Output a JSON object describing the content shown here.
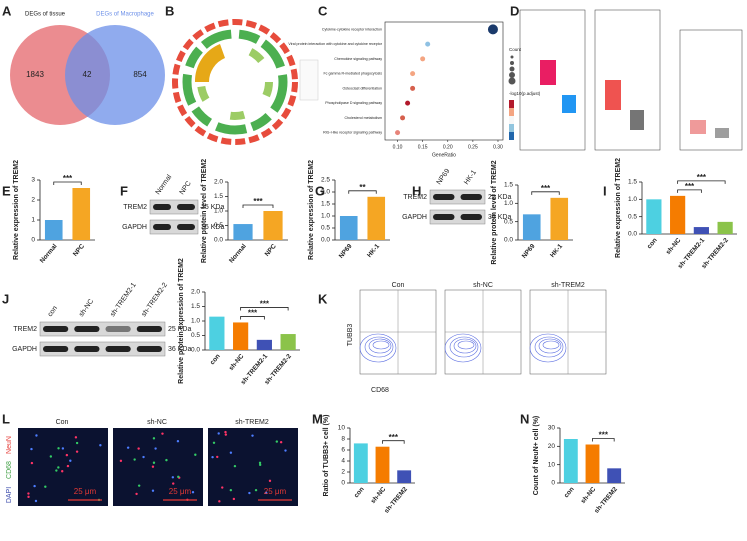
{
  "panels": [
    "A",
    "B",
    "C",
    "D",
    "E",
    "F",
    "G",
    "H",
    "I",
    "J",
    "K",
    "L",
    "M",
    "N"
  ],
  "venn": {
    "left_label": "DEGs of tissue",
    "right_label": "DEGs of Macrophage",
    "left_only": 1843,
    "overlap": 42,
    "right_only": 854
  },
  "chart_data": [
    {
      "type": "dot",
      "categories": [
        "Cytokine-cytokine receptor interaction",
        "Viral protein interaction with cytokine and cytokine receptor",
        "Chemokine signaling pathway",
        "Fc gamma R-mediated phagocytosis",
        "Osteoclast differentiation",
        "Phospholipase D signaling pathway",
        "Cholesterol metabolism",
        "RIG-I-like receptor signaling pathway"
      ],
      "values": [
        0.29,
        0.16,
        0.15,
        0.13,
        0.13,
        0.12,
        0.11,
        0.1
      ],
      "colors": [
        "#1a3a6b",
        "#8fc1e3",
        "#f4a582",
        "#f4a582",
        "#d6604d",
        "#b2182b",
        "#d6604d",
        "#e7847a"
      ],
      "xlabel": "GeneRatio",
      "xlim": [
        0.075,
        0.31
      ],
      "xticks": [
        {
          "value": 0.1,
          "label": "0.10"
        },
        {
          "value": 0.15,
          "label": "0.15"
        },
        {
          "value": 0.2,
          "label": "0.20"
        },
        {
          "value": 0.25,
          "label": "0.25"
        },
        {
          "value": 0.3,
          "label": "0.30"
        }
      ],
      "legend_titles": [
        "Count",
        "-log10(p.adjust)"
      ]
    },
    {
      "type": "bar",
      "ylabel": "Relative expression of TREM2",
      "categories": [
        "Normal",
        "NPC"
      ],
      "values": [
        1.0,
        2.6
      ],
      "colors": [
        "#4fa3e0",
        "#f5a623"
      ],
      "ylim": [
        0,
        3
      ],
      "yticks": [
        0,
        1,
        2,
        3
      ],
      "annotations": [
        "***"
      ]
    },
    {
      "type": "bar",
      "ylabel": "Relative protein level of TREM2",
      "categories": [
        "Normal",
        "NPC"
      ],
      "values": [
        0.55,
        1.0
      ],
      "colors": [
        "#4fa3e0",
        "#f5a623"
      ],
      "ylim": [
        0,
        2
      ],
      "yticks": [
        {
          "value": 0,
          "label": "0.0"
        },
        0.5,
        {
          "value": 1,
          "label": "1.0"
        },
        1.5,
        {
          "value": 2,
          "label": "2.0"
        }
      ],
      "annotations": [
        "***"
      ]
    },
    {
      "type": "bar",
      "ylabel": "Relative expression of TREM2",
      "categories": [
        "NP69",
        "HK-1"
      ],
      "values": [
        1.0,
        1.8
      ],
      "colors": [
        "#4fa3e0",
        "#f5a623"
      ],
      "ylim": [
        0,
        2.5
      ],
      "yticks": [
        {
          "value": 0,
          "label": "0.0"
        },
        0.5,
        {
          "value": 1,
          "label": "1.0"
        },
        1.5,
        {
          "value": 2,
          "label": "2.0"
        },
        2.5
      ],
      "annotations": [
        "**"
      ]
    },
    {
      "type": "bar",
      "ylabel": "Relative protein level of TREM2",
      "categories": [
        "NP69",
        "HK-1"
      ],
      "values": [
        0.7,
        1.15
      ],
      "colors": [
        "#4fa3e0",
        "#f5a623"
      ],
      "ylim": [
        0,
        1.5
      ],
      "yticks": [
        {
          "value": 0,
          "label": "0.0"
        },
        0.5,
        {
          "value": 1,
          "label": "1.0"
        },
        1.5
      ],
      "annotations": [
        "***"
      ]
    },
    {
      "type": "bar",
      "ylabel": "Relative expression of TREM2",
      "categories": [
        "con",
        "sh-NC",
        "sh-TREM2-1",
        "sh-TREM2-2"
      ],
      "values": [
        1.0,
        1.1,
        0.2,
        0.35
      ],
      "colors": [
        "#4dd0e1",
        "#f57c00",
        "#3f51b5",
        "#8bc34a"
      ],
      "ylim": [
        0,
        1.5
      ],
      "yticks": [
        {
          "value": 0,
          "label": "0.0"
        },
        0.5,
        {
          "value": 1,
          "label": "1.0"
        },
        1.5
      ],
      "annotations": [
        "***",
        "***"
      ]
    },
    {
      "type": "bar",
      "ylabel": "Relative protein expression of TREM2",
      "categories": [
        "con",
        "sh-NC",
        "sh-TREM2-1",
        "sh-TREM2-2"
      ],
      "values": [
        1.15,
        0.95,
        0.35,
        0.55
      ],
      "colors": [
        "#4dd0e1",
        "#f57c00",
        "#3f51b5",
        "#8bc34a"
      ],
      "ylim": [
        0,
        2
      ],
      "yticks": [
        {
          "value": 0,
          "label": "0.0"
        },
        0.5,
        {
          "value": 1,
          "label": "1.0"
        },
        1.5,
        {
          "value": 2,
          "label": "2.0"
        }
      ],
      "annotations": [
        "***",
        "***"
      ]
    },
    {
      "type": "bar",
      "ylabel": "Ratio of TUBB3+ cell (%)",
      "categories": [
        "con",
        "sh-NC",
        "sh-TREM2"
      ],
      "values": [
        7.2,
        6.6,
        2.3
      ],
      "colors": [
        "#4dd0e1",
        "#f57c00",
        "#3f51b5"
      ],
      "ylim": [
        0,
        10
      ],
      "yticks": [
        0,
        2,
        4,
        6,
        8,
        10
      ],
      "annotations": [
        "***"
      ]
    },
    {
      "type": "bar",
      "ylabel": "Count of NeuN+ cell (%)",
      "categories": [
        "con",
        "sh-NC",
        "sh-TREM2"
      ],
      "values": [
        24,
        21,
        8
      ],
      "colors": [
        "#4dd0e1",
        "#f57c00",
        "#3f51b5"
      ],
      "ylim": [
        0,
        30
      ],
      "yticks": [
        0,
        10,
        20,
        30
      ],
      "annotations": [
        "***"
      ]
    }
  ],
  "blots": [
    {
      "lanes": [
        "Normal",
        "NPC"
      ],
      "proteins": [
        "TREM2",
        "GAPDH"
      ],
      "sizes": [
        "25 KDa",
        "36 KDa"
      ]
    },
    {
      "lanes": [
        "NP69",
        "HK-1"
      ],
      "proteins": [
        "TREM2",
        "GAPDH"
      ],
      "sizes": [
        "25 KDa",
        "36 KDa"
      ]
    },
    {
      "lanes": [
        "con",
        "sh-NC",
        "sh-TREM2-1",
        "sh-TREM2-2"
      ],
      "proteins": [
        "TREM2",
        "GAPDH"
      ],
      "sizes": [
        "25 KDa",
        "36 KDa"
      ]
    }
  ],
  "flow": {
    "groups": [
      "Con",
      "sh-NC",
      "sh-TREM2"
    ],
    "y_label": "TUBB3",
    "x_label": "CD68"
  },
  "fluorescence": {
    "groups": [
      "Con",
      "sh-NC",
      "sh-TREM2"
    ],
    "stains": [
      "NeuN",
      "CD68",
      "DAPI"
    ],
    "scale_bar": "25 μm"
  }
}
